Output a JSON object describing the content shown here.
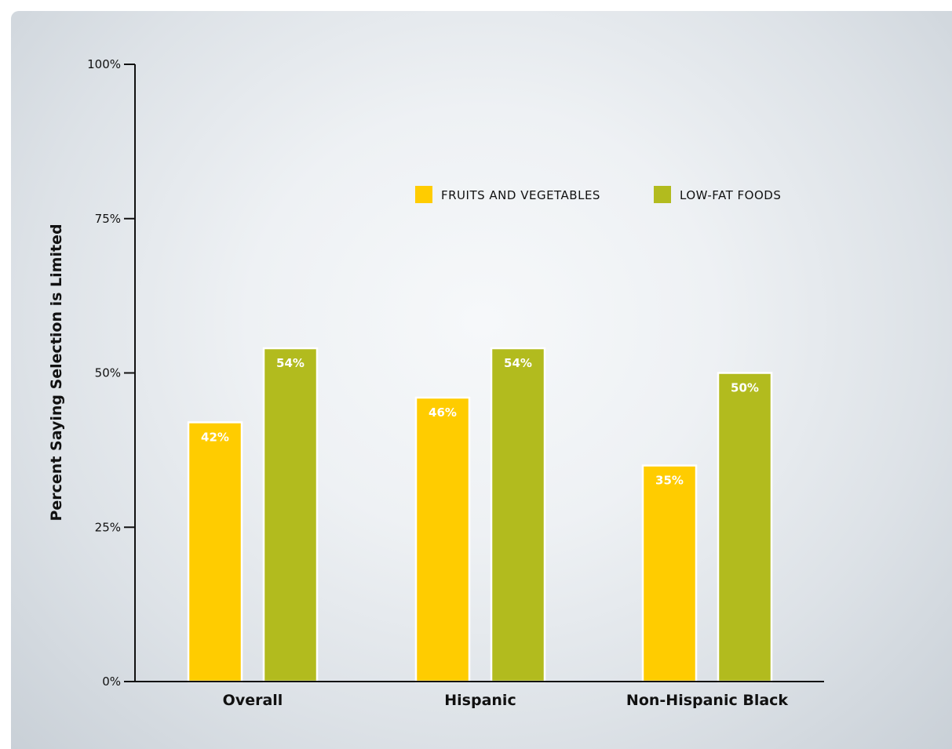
{
  "chart_data": {
    "type": "bar",
    "title": "",
    "xlabel": "",
    "ylabel": "Percent Saying Selection is Limited",
    "categories": [
      "Overall",
      "Hispanic",
      "Non-Hispanic Black"
    ],
    "series": [
      {
        "name": "FRUITS AND VEGETABLES",
        "color": "#FFCC00",
        "values": [
          42,
          46,
          35
        ],
        "labels": [
          "42%",
          "46%",
          "35%"
        ]
      },
      {
        "name": "LOW-FAT FOODS",
        "color": "#B2BB1E",
        "values": [
          54,
          54,
          50
        ],
        "labels": [
          "54%",
          "54%",
          "50%"
        ]
      }
    ],
    "ylim": [
      0,
      100
    ],
    "yticks": [
      0,
      25,
      50,
      75,
      100
    ],
    "ytick_labels": [
      "0%",
      "25%",
      "50%",
      "75%",
      "100%"
    ],
    "grid": false,
    "legend_position": "top-right"
  }
}
